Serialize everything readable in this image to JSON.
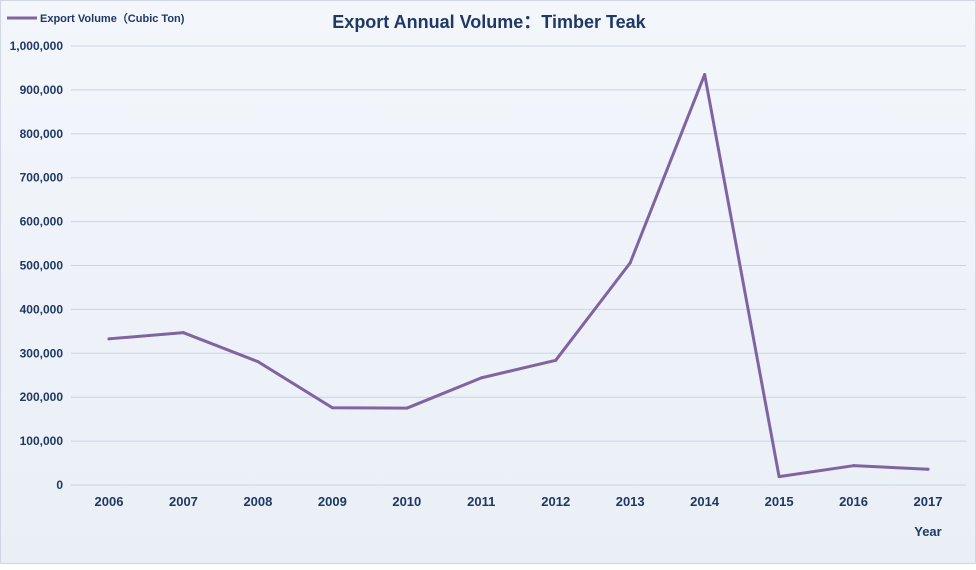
{
  "chart_data": {
    "type": "line",
    "title": "Export Annual Volume：Timber Teak",
    "xlabel": "Year",
    "ylabel": "",
    "categories": [
      "2006",
      "2007",
      "2008",
      "2009",
      "2010",
      "2011",
      "2012",
      "2013",
      "2014",
      "2015",
      "2016",
      "2017"
    ],
    "series": [
      {
        "name": "Export Volume（Cubic Ton)",
        "values": [
          333000,
          347000,
          281000,
          176000,
          175000,
          244000,
          284000,
          506000,
          935000,
          19000,
          44000,
          36000
        ]
      }
    ],
    "ylim": [
      0,
      1000000
    ],
    "yticks": [
      "0",
      "100,000",
      "200,000",
      "300,000",
      "400,000",
      "500,000",
      "600,000",
      "700,000",
      "800,000",
      "900,000",
      "1,000,000"
    ],
    "ytick_values": [
      0,
      100000,
      200000,
      300000,
      400000,
      500000,
      600000,
      700000,
      800000,
      900000,
      1000000
    ],
    "grid": true,
    "legend_position": "top-left",
    "colors": {
      "series": "#8064a2",
      "text": "#1f3864",
      "grid": "#c5d6ea"
    }
  }
}
